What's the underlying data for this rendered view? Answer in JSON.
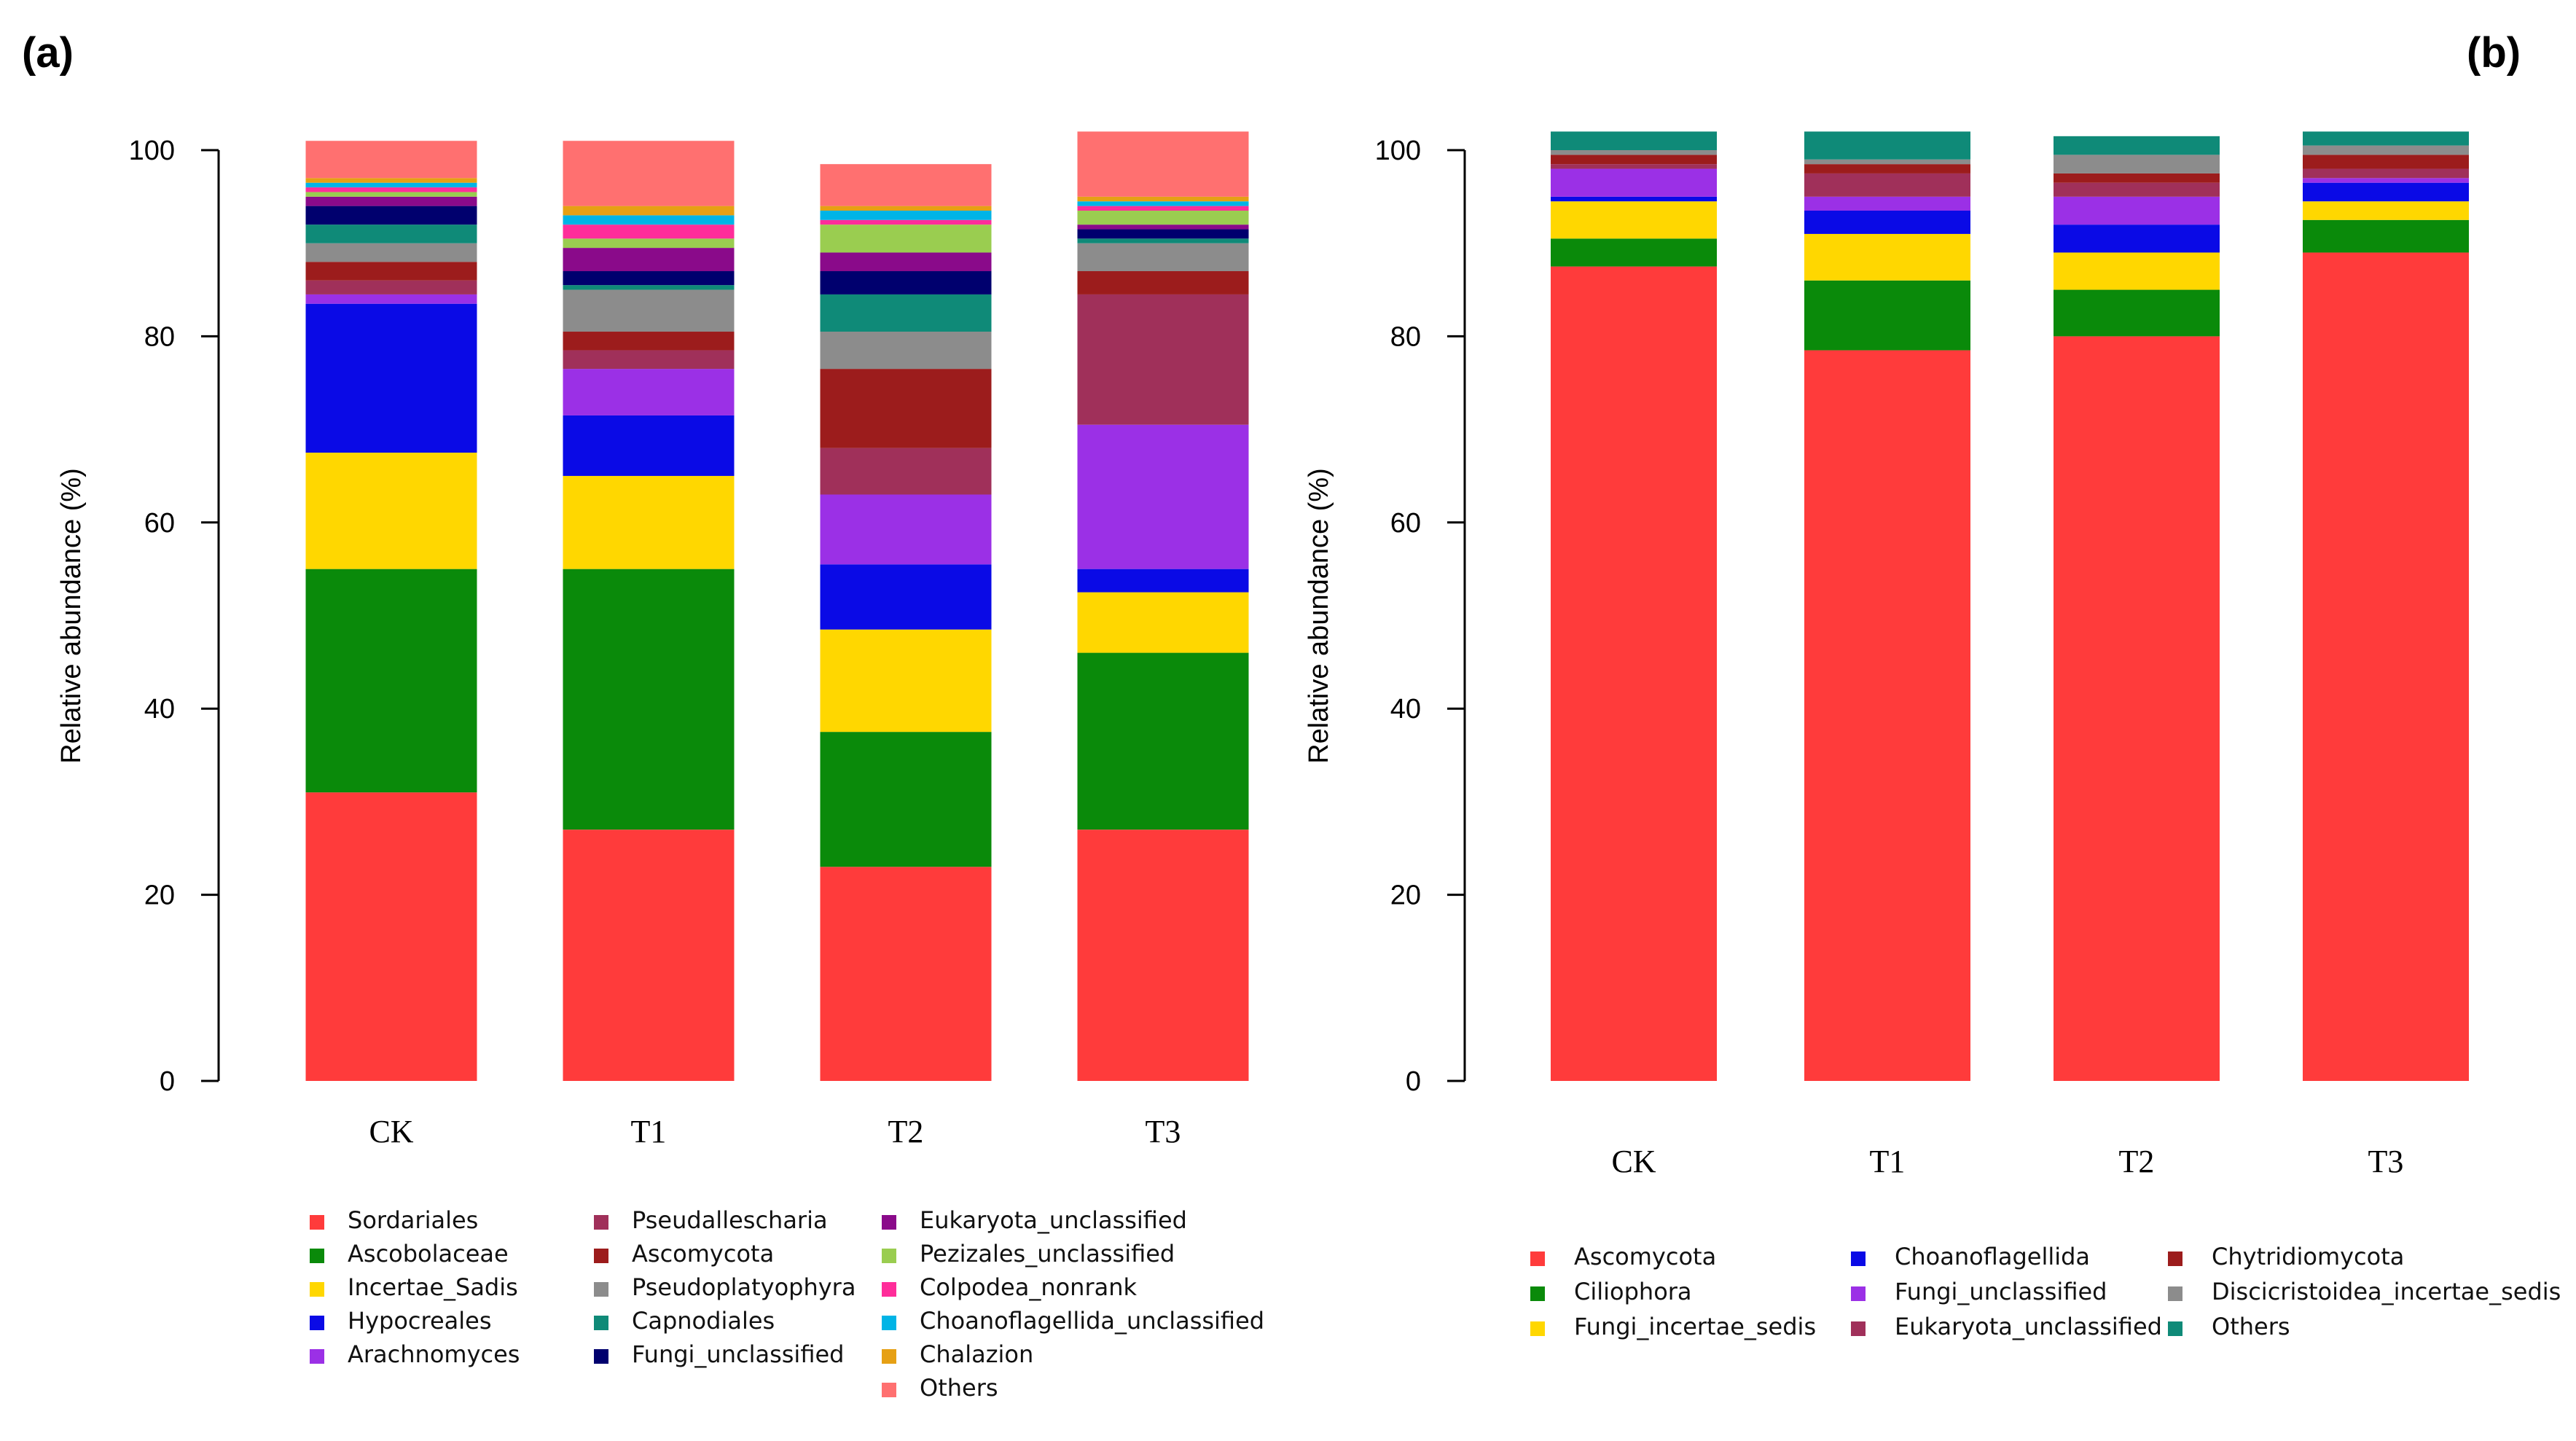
{
  "figure_labels": {
    "a": "(a)",
    "b": "(b)"
  },
  "chart_data": [
    {
      "type": "bar",
      "stacked": true,
      "panel": "(a)",
      "ylabel": "Relative abundance (%)",
      "ylim": [
        0,
        100
      ],
      "yticks": [
        0,
        20,
        40,
        60,
        80,
        100
      ],
      "categories": [
        "CK",
        "T1",
        "T2",
        "T3"
      ],
      "series": [
        {
          "name": "Sordariales",
          "color": "#ff3b3b",
          "values": [
            31.0,
            27.0,
            23.0,
            27.0
          ]
        },
        {
          "name": "Ascobolaceae",
          "color": "#0a8a0a",
          "values": [
            24.0,
            28.0,
            14.5,
            19.0
          ]
        },
        {
          "name": "Incertae_Sadis",
          "color": "#ffd700",
          "values": [
            12.5,
            10.0,
            11.0,
            6.5
          ]
        },
        {
          "name": "Hypocreales",
          "color": "#0a0ae6",
          "values": [
            16.0,
            6.5,
            7.0,
            2.5
          ]
        },
        {
          "name": "Arachnomyces",
          "color": "#9b30e6",
          "values": [
            1.0,
            5.0,
            7.5,
            15.5
          ]
        },
        {
          "name": "Pseudallescharia",
          "color": "#a0305a",
          "values": [
            1.5,
            2.0,
            5.0,
            14.0
          ]
        },
        {
          "name": "Ascomycota",
          "color": "#9c1c1c",
          "values": [
            2.0,
            2.0,
            8.5,
            2.5
          ]
        },
        {
          "name": "Pseudoplatyophyra",
          "color": "#8c8c8c",
          "values": [
            2.0,
            4.5,
            4.0,
            3.0
          ]
        },
        {
          "name": "Capnodiales",
          "color": "#0f8a78",
          "values": [
            2.0,
            0.5,
            4.0,
            0.5
          ]
        },
        {
          "name": "Fungi_unclassified",
          "color": "#00006e",
          "values": [
            2.0,
            1.5,
            2.5,
            1.0
          ]
        },
        {
          "name": "Eukaryota_unclassified",
          "color": "#8a0a8a",
          "values": [
            1.0,
            2.5,
            2.0,
            0.5
          ]
        },
        {
          "name": "Pezizales_unclassified",
          "color": "#9acd50",
          "values": [
            0.5,
            1.0,
            3.0,
            1.5
          ]
        },
        {
          "name": "Colpodea_nonrank",
          "color": "#ff2d9a",
          "values": [
            0.5,
            1.5,
            0.5,
            0.5
          ]
        },
        {
          "name": "Choanoflagellida_unclassified",
          "color": "#00b4e6",
          "values": [
            0.5,
            1.0,
            1.0,
            0.5
          ]
        },
        {
          "name": "Chalazion",
          "color": "#e6a014",
          "values": [
            0.5,
            1.0,
            0.5,
            0.5
          ]
        },
        {
          "name": "Others",
          "color": "#ff7070",
          "values": [
            4.0,
            7.0,
            4.5,
            7.0
          ]
        }
      ]
    },
    {
      "type": "bar",
      "stacked": true,
      "panel": "(b)",
      "ylabel": "Relative abundance (%)",
      "ylim": [
        0,
        100
      ],
      "yticks": [
        0,
        20,
        40,
        60,
        80,
        100
      ],
      "categories": [
        "CK",
        "T1",
        "T2",
        "T3"
      ],
      "series": [
        {
          "name": "Ascomycota",
          "color": "#ff3b3b",
          "values": [
            87.5,
            78.5,
            80.0,
            89.0
          ]
        },
        {
          "name": "Ciliophora",
          "color": "#0a8a0a",
          "values": [
            3.0,
            7.5,
            5.0,
            3.5
          ]
        },
        {
          "name": "Fungi_incertae_sedis",
          "color": "#ffd700",
          "values": [
            4.0,
            5.0,
            4.0,
            2.0
          ]
        },
        {
          "name": "Choanoflagellida",
          "color": "#0a0ae6",
          "values": [
            0.5,
            2.5,
            3.0,
            2.0
          ]
        },
        {
          "name": "Fungi_unclassified",
          "color": "#9b30e6",
          "values": [
            3.0,
            1.5,
            3.0,
            0.5
          ]
        },
        {
          "name": "Eukaryota_unclassified",
          "color": "#a0305a",
          "values": [
            0.5,
            2.5,
            1.5,
            1.0
          ]
        },
        {
          "name": "Chytridiomycota",
          "color": "#9c1c1c",
          "values": [
            1.0,
            1.0,
            1.0,
            1.5
          ]
        },
        {
          "name": "Discicristoidea_incertae_sedis",
          "color": "#8c8c8c",
          "values": [
            0.5,
            0.5,
            2.0,
            1.0
          ]
        },
        {
          "name": "Others",
          "color": "#0f8a78",
          "values": [
            2.0,
            3.0,
            2.0,
            1.5
          ]
        }
      ]
    }
  ]
}
